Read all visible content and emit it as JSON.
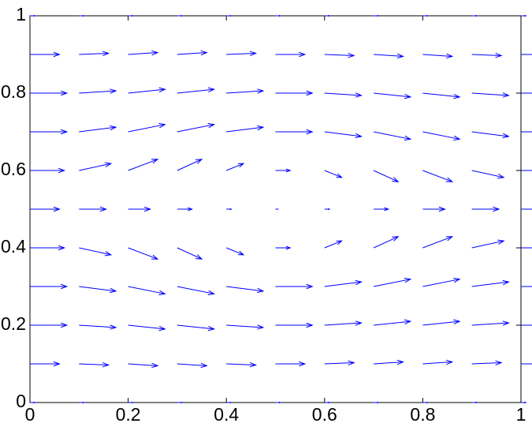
{
  "chart_data": {
    "type": "quiver",
    "color": "#0000ff",
    "x": [
      0,
      0.1,
      0.2,
      0.3,
      0.4,
      0.5,
      0.6,
      0.7,
      0.8,
      0.9,
      1
    ],
    "y": [
      0,
      0.1,
      0.2,
      0.3,
      0.4,
      0.5,
      0.6,
      0.7,
      0.8,
      0.9,
      1
    ],
    "u": [
      [
        0.01,
        0.01,
        0.01,
        0.01,
        0.01,
        0.01,
        0.01,
        0.01,
        0.01,
        0.01,
        0.01
      ],
      [
        0.06,
        0.06,
        0.06,
        0.06,
        0.06,
        0.06,
        0.06,
        0.06,
        0.06,
        0.06,
        0.06
      ],
      [
        0.075,
        0.075,
        0.075,
        0.075,
        0.075,
        0.075,
        0.075,
        0.075,
        0.075,
        0.075,
        0.075
      ],
      [
        0.075,
        0.075,
        0.075,
        0.075,
        0.075,
        0.075,
        0.075,
        0.075,
        0.075,
        0.075,
        0.075
      ],
      [
        0.07,
        0.065,
        0.06,
        0.05,
        0.035,
        0.03,
        0.035,
        0.05,
        0.06,
        0.065,
        0.07
      ],
      [
        0.06,
        0.055,
        0.045,
        0.03,
        0.01,
        0.005,
        0.01,
        0.03,
        0.045,
        0.055,
        0.06
      ],
      [
        0.07,
        0.065,
        0.06,
        0.05,
        0.035,
        0.03,
        0.035,
        0.05,
        0.06,
        0.065,
        0.07
      ],
      [
        0.075,
        0.075,
        0.075,
        0.075,
        0.075,
        0.075,
        0.075,
        0.075,
        0.075,
        0.075,
        0.075
      ],
      [
        0.075,
        0.075,
        0.075,
        0.075,
        0.075,
        0.075,
        0.075,
        0.075,
        0.075,
        0.075,
        0.075
      ],
      [
        0.06,
        0.06,
        0.06,
        0.06,
        0.06,
        0.06,
        0.06,
        0.06,
        0.06,
        0.06,
        0.06
      ],
      [
        0.01,
        0.01,
        0.01,
        0.01,
        0.01,
        0.01,
        0.01,
        0.01,
        0.01,
        0.01,
        0.01
      ]
    ],
    "v": [
      [
        0,
        0,
        0,
        0,
        0,
        0,
        0,
        0,
        0,
        0,
        0
      ],
      [
        0,
        -0.003,
        -0.005,
        -0.005,
        -0.003,
        0,
        0.003,
        0.005,
        0.005,
        0.003,
        0
      ],
      [
        0,
        -0.006,
        -0.01,
        -0.01,
        -0.006,
        0,
        0.006,
        0.01,
        0.01,
        0.006,
        0
      ],
      [
        0,
        -0.012,
        -0.019,
        -0.019,
        -0.012,
        0,
        0.012,
        0.019,
        0.019,
        0.012,
        0
      ],
      [
        0,
        -0.018,
        -0.029,
        -0.029,
        -0.018,
        0,
        0.018,
        0.029,
        0.029,
        0.018,
        0
      ],
      [
        0,
        0,
        0,
        0,
        0,
        0,
        0,
        0,
        0,
        0,
        0
      ],
      [
        0,
        0.018,
        0.029,
        0.029,
        0.018,
        0,
        -0.018,
        -0.029,
        -0.029,
        -0.018,
        0
      ],
      [
        0,
        0.012,
        0.019,
        0.019,
        0.012,
        0,
        -0.012,
        -0.019,
        -0.019,
        -0.012,
        0
      ],
      [
        0,
        0.006,
        0.01,
        0.01,
        0.006,
        0,
        -0.006,
        -0.01,
        -0.01,
        -0.006,
        0
      ],
      [
        0,
        0.003,
        0.005,
        0.005,
        0.003,
        0,
        -0.003,
        -0.005,
        -0.005,
        -0.003,
        0
      ],
      [
        0,
        0,
        0,
        0,
        0,
        0,
        0,
        0,
        0,
        0,
        0
      ]
    ],
    "xlim": [
      0,
      1
    ],
    "ylim": [
      0,
      1
    ],
    "xticks": [
      0,
      0.2,
      0.4,
      0.6,
      0.8,
      1
    ],
    "yticks": [
      0,
      0.2,
      0.4,
      0.6,
      0.8,
      1
    ]
  }
}
